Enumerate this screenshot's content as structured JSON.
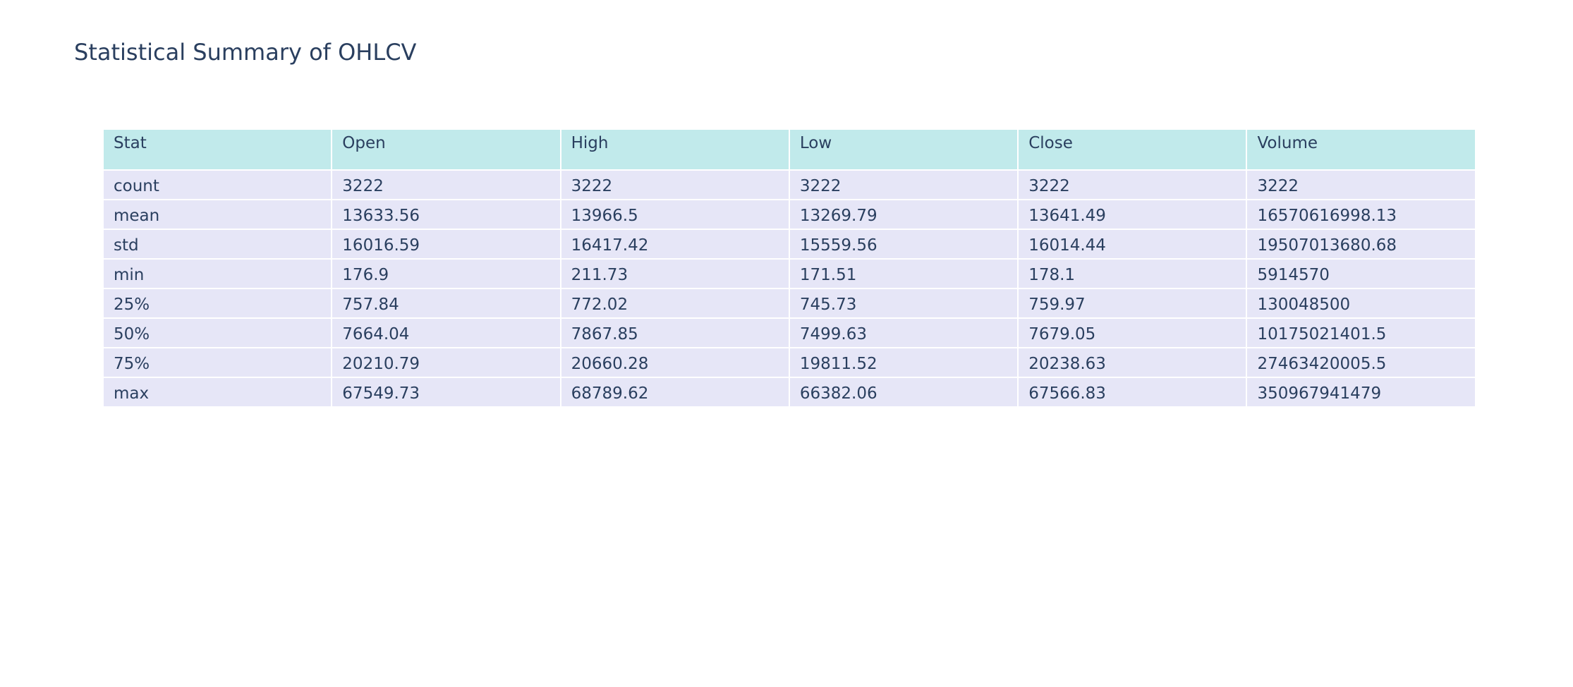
{
  "chart_data": {
    "type": "table",
    "title": "Statistical Summary of OHLCV",
    "columns": [
      "Stat",
      "Open",
      "High",
      "Low",
      "Close",
      "Volume"
    ],
    "rows": [
      [
        "count",
        "3222",
        "3222",
        "3222",
        "3222",
        "3222"
      ],
      [
        "mean",
        "13633.56",
        "13966.5",
        "13269.79",
        "13641.49",
        "16570616998.13"
      ],
      [
        "std",
        "16016.59",
        "16417.42",
        "15559.56",
        "16014.44",
        "19507013680.68"
      ],
      [
        "min",
        "176.9",
        "211.73",
        "171.51",
        "178.1",
        "5914570"
      ],
      [
        "25%",
        "757.84",
        "772.02",
        "745.73",
        "759.97",
        "130048500"
      ],
      [
        "50%",
        "7664.04",
        "7867.85",
        "7499.63",
        "7679.05",
        "10175021401.5"
      ],
      [
        "75%",
        "20210.79",
        "20660.28",
        "19811.52",
        "20238.63",
        "27463420005.5"
      ],
      [
        "max",
        "67549.73",
        "68789.62",
        "66382.06",
        "67566.83",
        "350967941479"
      ]
    ],
    "colors": {
      "header_fill": "#c1eaeb",
      "cell_fill": "#e6e6f7",
      "text": "#2a3f5f"
    }
  }
}
